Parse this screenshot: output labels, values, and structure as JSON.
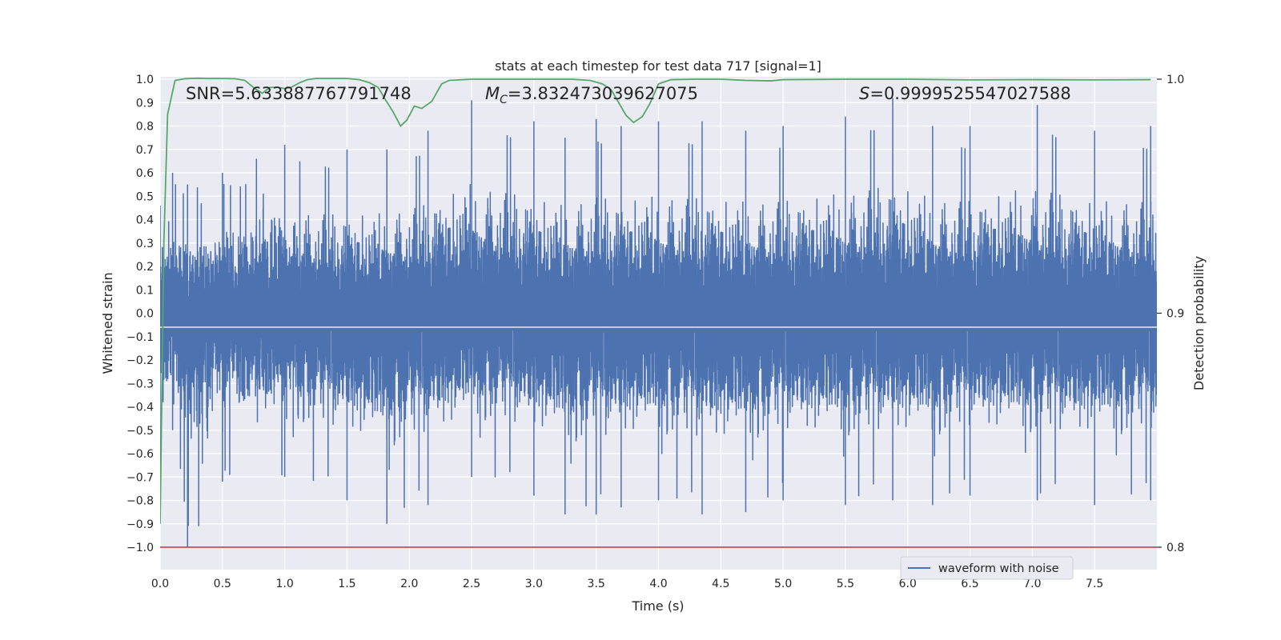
{
  "chart_data": {
    "type": "line",
    "title": "stats at each timestep for test data 717 [signal=1]",
    "xlabel": "Time (s)",
    "ylabel": "Whitened strain",
    "y2label": "Detection probability",
    "xlim": [
      0.0,
      8.0
    ],
    "ylim": [
      -1.0,
      1.0
    ],
    "y2lim": [
      0.8,
      1.0
    ],
    "x_ticks": [
      "0.0",
      "0.5",
      "1.0",
      "1.5",
      "2.0",
      "2.5",
      "3.0",
      "3.5",
      "4.0",
      "4.5",
      "5.0",
      "5.5",
      "6.0",
      "6.5",
      "7.0",
      "7.5"
    ],
    "y_ticks": [
      "1.0",
      "0.9",
      "0.8",
      "0.7",
      "0.6",
      "0.5",
      "0.4",
      "0.3",
      "0.2",
      "0.1",
      "0.0",
      "−0.1",
      "−0.2",
      "−0.3",
      "−0.4",
      "−0.5",
      "−0.6",
      "−0.7",
      "−0.8",
      "−0.9",
      "−1.0"
    ],
    "y2_ticks": [
      "1.0",
      "0.9",
      "0.8"
    ],
    "grid": true,
    "legend": {
      "placement": "bottom-center-right",
      "entries": [
        "waveform with noise"
      ]
    },
    "annotations": {
      "snr": "SNR=5.633887767791748",
      "mc_symbol": "M",
      "mc_sub": "C",
      "mc_value": "=3.832473039627075",
      "s_symbol": "S",
      "s_value": "=0.9999525547027588"
    },
    "series": [
      {
        "name": "waveform with noise",
        "axis": "left",
        "color": "#4c72b0",
        "sample_rate": 2048,
        "duration": 8.0,
        "peak_envelope": [
          {
            "x": 0.0,
            "y": [
              -0.75,
              0.46
            ]
          },
          {
            "x": 0.1,
            "y": [
              -0.5,
              0.6
            ]
          },
          {
            "x": 0.22,
            "y": [
              -1.0,
              0.55
            ]
          },
          {
            "x": 0.5,
            "y": [
              -0.72,
              0.6
            ]
          },
          {
            "x": 1.0,
            "y": [
              -0.7,
              0.72
            ]
          },
          {
            "x": 1.5,
            "y": [
              -0.8,
              0.7
            ]
          },
          {
            "x": 1.82,
            "y": [
              -0.9,
              0.7
            ]
          },
          {
            "x": 2.15,
            "y": [
              -0.82,
              0.78
            ]
          },
          {
            "x": 2.5,
            "y": [
              -0.7,
              0.91
            ]
          },
          {
            "x": 3.0,
            "y": [
              -0.78,
              0.82
            ]
          },
          {
            "x": 3.25,
            "y": [
              -0.86,
              0.75
            ]
          },
          {
            "x": 3.5,
            "y": [
              -0.86,
              0.83
            ]
          },
          {
            "x": 3.7,
            "y": [
              -0.83,
              0.8
            ]
          },
          {
            "x": 4.0,
            "y": [
              -0.8,
              0.82
            ]
          },
          {
            "x": 4.35,
            "y": [
              -0.86,
              0.82
            ]
          },
          {
            "x": 4.7,
            "y": [
              -0.85,
              0.78
            ]
          },
          {
            "x": 5.0,
            "y": [
              -0.8,
              0.8
            ]
          },
          {
            "x": 5.5,
            "y": [
              -0.82,
              0.84
            ]
          },
          {
            "x": 5.88,
            "y": [
              -0.8,
              0.92
            ]
          },
          {
            "x": 6.2,
            "y": [
              -0.82,
              0.8
            ]
          },
          {
            "x": 6.5,
            "y": [
              -0.78,
              0.8
            ]
          },
          {
            "x": 7.04,
            "y": [
              -0.8,
              0.89
            ]
          },
          {
            "x": 7.5,
            "y": [
              -0.82,
              0.78
            ]
          },
          {
            "x": 7.95,
            "y": [
              -0.8,
              0.8
            ]
          }
        ]
      },
      {
        "name": "",
        "axis": "right",
        "color": "#55a868",
        "x": [
          0.0,
          0.03,
          0.06,
          0.12,
          0.2,
          0.3,
          0.4,
          0.5,
          0.6,
          0.68,
          0.76,
          0.82,
          0.88,
          0.95,
          1.0,
          1.05,
          1.12,
          1.18,
          1.25,
          1.35,
          1.5,
          1.6,
          1.68,
          1.75,
          1.8,
          1.87,
          1.93,
          1.98,
          2.04,
          2.1,
          2.18,
          2.26,
          2.32,
          2.5,
          2.7,
          3.0,
          3.3,
          3.45,
          3.55,
          3.62,
          3.68,
          3.74,
          3.8,
          3.87,
          3.93,
          4.0,
          4.1,
          4.3,
          4.5,
          4.7,
          4.9,
          5.0,
          5.5,
          6.0,
          6.5,
          7.0,
          7.5,
          7.95
        ],
        "y": [
          0.81,
          0.93,
          0.985,
          0.9995,
          1.0002,
          1.0004,
          1.0003,
          1.0003,
          1.0002,
          0.9995,
          0.996,
          0.994,
          0.9965,
          0.9965,
          0.996,
          0.9965,
          0.9985,
          0.9998,
          1.0003,
          1.0003,
          1.0003,
          0.9998,
          0.9985,
          0.9965,
          0.992,
          0.986,
          0.98,
          0.9825,
          0.9885,
          0.9875,
          0.9905,
          0.998,
          0.9995,
          1.0,
          1.0,
          1.0,
          1.0,
          0.9995,
          0.998,
          0.9955,
          0.99,
          0.9845,
          0.9815,
          0.984,
          0.9895,
          0.998,
          0.9998,
          1.0,
          1.0,
          0.9995,
          0.9993,
          0.9998,
          1.0,
          1.0,
          0.9997,
          0.9998,
          0.9997,
          0.9998
        ]
      },
      {
        "name": "",
        "axis": "right",
        "color": "#c44e52",
        "x": [
          0.0,
          8.0
        ],
        "y": [
          0.8,
          0.8
        ]
      }
    ]
  }
}
